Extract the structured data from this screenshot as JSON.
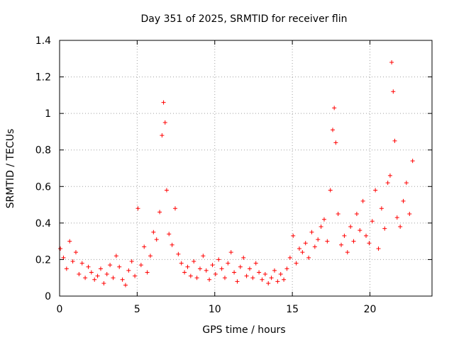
{
  "chart_data": {
    "type": "scatter",
    "title": "Day 351 of 2025, SRMTID for receiver flin",
    "xlabel": "GPS time / hours",
    "ylabel": "SRMTID / TECUs",
    "xlim": [
      0,
      24
    ],
    "ylim": [
      0,
      1.4
    ],
    "xticks": [
      0,
      5,
      10,
      15,
      20
    ],
    "xtick_labels": [
      "0",
      "5",
      "10",
      "15",
      "20"
    ],
    "yticks": [
      0,
      0.2,
      0.4,
      0.6,
      0.8,
      1,
      1.2,
      1.4
    ],
    "ytick_labels": [
      "0",
      "0.2",
      "0.4",
      "0.6",
      "0.8",
      "1",
      "1.2",
      "1.4"
    ],
    "grid": true,
    "marker": "+",
    "colors": {
      "marker": "#ff0000",
      "axis": "#000000",
      "grid": "#a0a0a0"
    },
    "series": [
      {
        "name": "SRMTID",
        "x": [
          0.05,
          0.25,
          0.45,
          0.65,
          0.85,
          1.05,
          1.25,
          1.45,
          1.65,
          1.85,
          2.05,
          2.25,
          2.45,
          2.65,
          2.85,
          3.05,
          3.25,
          3.45,
          3.65,
          3.85,
          4.05,
          4.25,
          4.45,
          4.65,
          4.85,
          5.05,
          5.25,
          5.45,
          5.65,
          5.85,
          6.05,
          6.25,
          6.45,
          6.6,
          6.7,
          6.8,
          6.9,
          7.05,
          7.25,
          7.45,
          7.65,
          7.85,
          8.05,
          8.25,
          8.45,
          8.65,
          8.85,
          9.05,
          9.25,
          9.45,
          9.65,
          9.85,
          10.05,
          10.25,
          10.45,
          10.65,
          10.85,
          11.05,
          11.25,
          11.45,
          11.65,
          11.85,
          12.05,
          12.25,
          12.45,
          12.65,
          12.85,
          13.05,
          13.25,
          13.45,
          13.65,
          13.85,
          14.05,
          14.25,
          14.45,
          14.65,
          14.85,
          15.05,
          15.25,
          15.45,
          15.65,
          15.85,
          16.05,
          16.25,
          16.45,
          16.65,
          16.85,
          17.05,
          17.25,
          17.45,
          17.6,
          17.7,
          17.8,
          17.95,
          18.15,
          18.35,
          18.55,
          18.75,
          18.95,
          19.15,
          19.35,
          19.55,
          19.75,
          19.95,
          20.15,
          20.35,
          20.55,
          20.75,
          20.95,
          21.15,
          21.3,
          21.4,
          21.5,
          21.6,
          21.75,
          21.95,
          22.15,
          22.35,
          22.55,
          22.75
        ],
        "y": [
          0.26,
          0.21,
          0.15,
          0.3,
          0.19,
          0.24,
          0.12,
          0.18,
          0.1,
          0.16,
          0.13,
          0.09,
          0.11,
          0.15,
          0.07,
          0.12,
          0.17,
          0.1,
          0.22,
          0.16,
          0.09,
          0.06,
          0.14,
          0.19,
          0.11,
          0.48,
          0.17,
          0.27,
          0.13,
          0.22,
          0.35,
          0.31,
          0.46,
          0.88,
          1.06,
          0.95,
          0.58,
          0.34,
          0.28,
          0.48,
          0.23,
          0.18,
          0.13,
          0.16,
          0.11,
          0.19,
          0.1,
          0.15,
          0.22,
          0.14,
          0.09,
          0.17,
          0.12,
          0.2,
          0.15,
          0.1,
          0.18,
          0.24,
          0.13,
          0.08,
          0.16,
          0.21,
          0.11,
          0.15,
          0.1,
          0.18,
          0.13,
          0.09,
          0.12,
          0.07,
          0.1,
          0.14,
          0.08,
          0.12,
          0.09,
          0.15,
          0.21,
          0.33,
          0.18,
          0.26,
          0.24,
          0.29,
          0.21,
          0.35,
          0.27,
          0.31,
          0.38,
          0.42,
          0.3,
          0.58,
          0.91,
          1.03,
          0.84,
          0.45,
          0.28,
          0.33,
          0.24,
          0.38,
          0.3,
          0.45,
          0.36,
          0.52,
          0.33,
          0.29,
          0.41,
          0.58,
          0.26,
          0.48,
          0.37,
          0.62,
          0.66,
          1.28,
          1.12,
          0.85,
          0.43,
          0.38,
          0.52,
          0.62,
          0.45,
          0.74
        ]
      }
    ]
  }
}
